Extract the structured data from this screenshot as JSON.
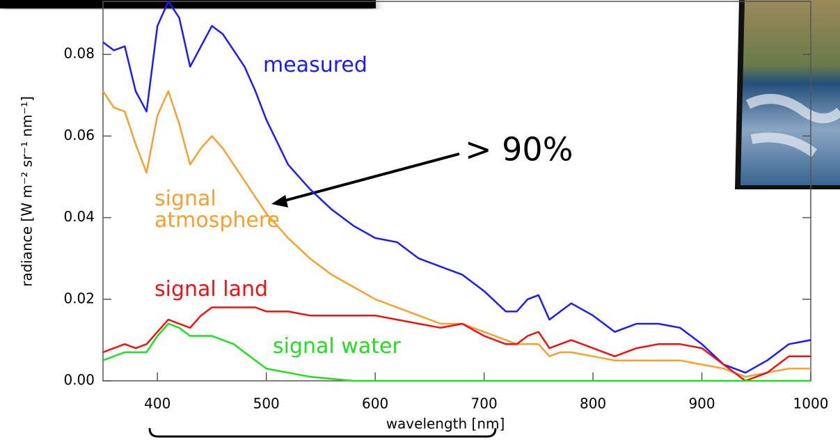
{
  "chart_data": {
    "type": "line",
    "x": [
      350,
      360,
      370,
      380,
      390,
      400,
      410,
      420,
      430,
      440,
      450,
      460,
      470,
      480,
      490,
      500,
      520,
      540,
      560,
      580,
      600,
      620,
      640,
      660,
      680,
      700,
      720,
      730,
      740,
      750,
      760,
      770,
      780,
      800,
      820,
      840,
      860,
      880,
      900,
      920,
      940,
      960,
      980,
      1000
    ],
    "series": [
      {
        "name": "measured",
        "color": "#1a1aff",
        "values": [
          0.083,
          0.081,
          0.082,
          0.071,
          0.066,
          0.087,
          0.093,
          0.089,
          0.077,
          0.082,
          0.087,
          0.085,
          0.081,
          0.077,
          0.071,
          0.064,
          0.053,
          0.047,
          0.042,
          0.038,
          0.035,
          0.034,
          0.03,
          0.028,
          0.026,
          0.022,
          0.017,
          0.017,
          0.02,
          0.021,
          0.015,
          0.017,
          0.019,
          0.016,
          0.012,
          0.014,
          0.014,
          0.013,
          0.009,
          0.004,
          0.002,
          0.005,
          0.009,
          0.01
        ]
      },
      {
        "name": "signal atmosphere",
        "color": "#f5a030",
        "values": [
          0.071,
          0.067,
          0.066,
          0.058,
          0.051,
          0.065,
          0.071,
          0.063,
          0.053,
          0.057,
          0.06,
          0.057,
          0.053,
          0.049,
          0.045,
          0.041,
          0.035,
          0.03,
          0.026,
          0.023,
          0.02,
          0.018,
          0.016,
          0.014,
          0.014,
          0.012,
          0.01,
          0.009,
          0.009,
          0.009,
          0.006,
          0.007,
          0.007,
          0.006,
          0.005,
          0.005,
          0.005,
          0.005,
          0.004,
          0.003,
          0.001,
          0.002,
          0.003,
          0.003
        ]
      },
      {
        "name": "signal land",
        "color": "#ee1111",
        "values": [
          0.007,
          0.008,
          0.009,
          0.008,
          0.009,
          0.012,
          0.015,
          0.014,
          0.013,
          0.016,
          0.018,
          0.018,
          0.018,
          0.018,
          0.018,
          0.017,
          0.017,
          0.016,
          0.016,
          0.016,
          0.016,
          0.015,
          0.014,
          0.013,
          0.014,
          0.011,
          0.009,
          0.009,
          0.011,
          0.012,
          0.008,
          0.009,
          0.01,
          0.008,
          0.006,
          0.008,
          0.009,
          0.009,
          0.008,
          0.004,
          0.0,
          0.002,
          0.006,
          0.006
        ]
      },
      {
        "name": "signal water",
        "color": "#22dd22",
        "values": [
          0.005,
          0.006,
          0.007,
          0.007,
          0.007,
          0.011,
          0.014,
          0.013,
          0.011,
          0.011,
          0.011,
          0.01,
          0.009,
          0.007,
          0.005,
          0.003,
          0.002,
          0.001,
          0.0005,
          0,
          0,
          0,
          0,
          0,
          0,
          0,
          0,
          0,
          0,
          0,
          0,
          0,
          0,
          0,
          0,
          0,
          0,
          0,
          0,
          0,
          0,
          0,
          0,
          0
        ]
      }
    ],
    "xlabel": "wavelength [nm]",
    "ylabel": "radiance [W m⁻² sr⁻¹ nm⁻¹]",
    "xlim": [
      350,
      1000
    ],
    "xticks": [
      400,
      500,
      600,
      700,
      800,
      900,
      1000
    ],
    "ylim": [
      0,
      0.093
    ],
    "yticks": [
      {
        "value": 0,
        "label": "0.00"
      },
      0.02,
      0.04,
      0.06,
      0.08
    ],
    "annotation": "> 90%"
  }
}
